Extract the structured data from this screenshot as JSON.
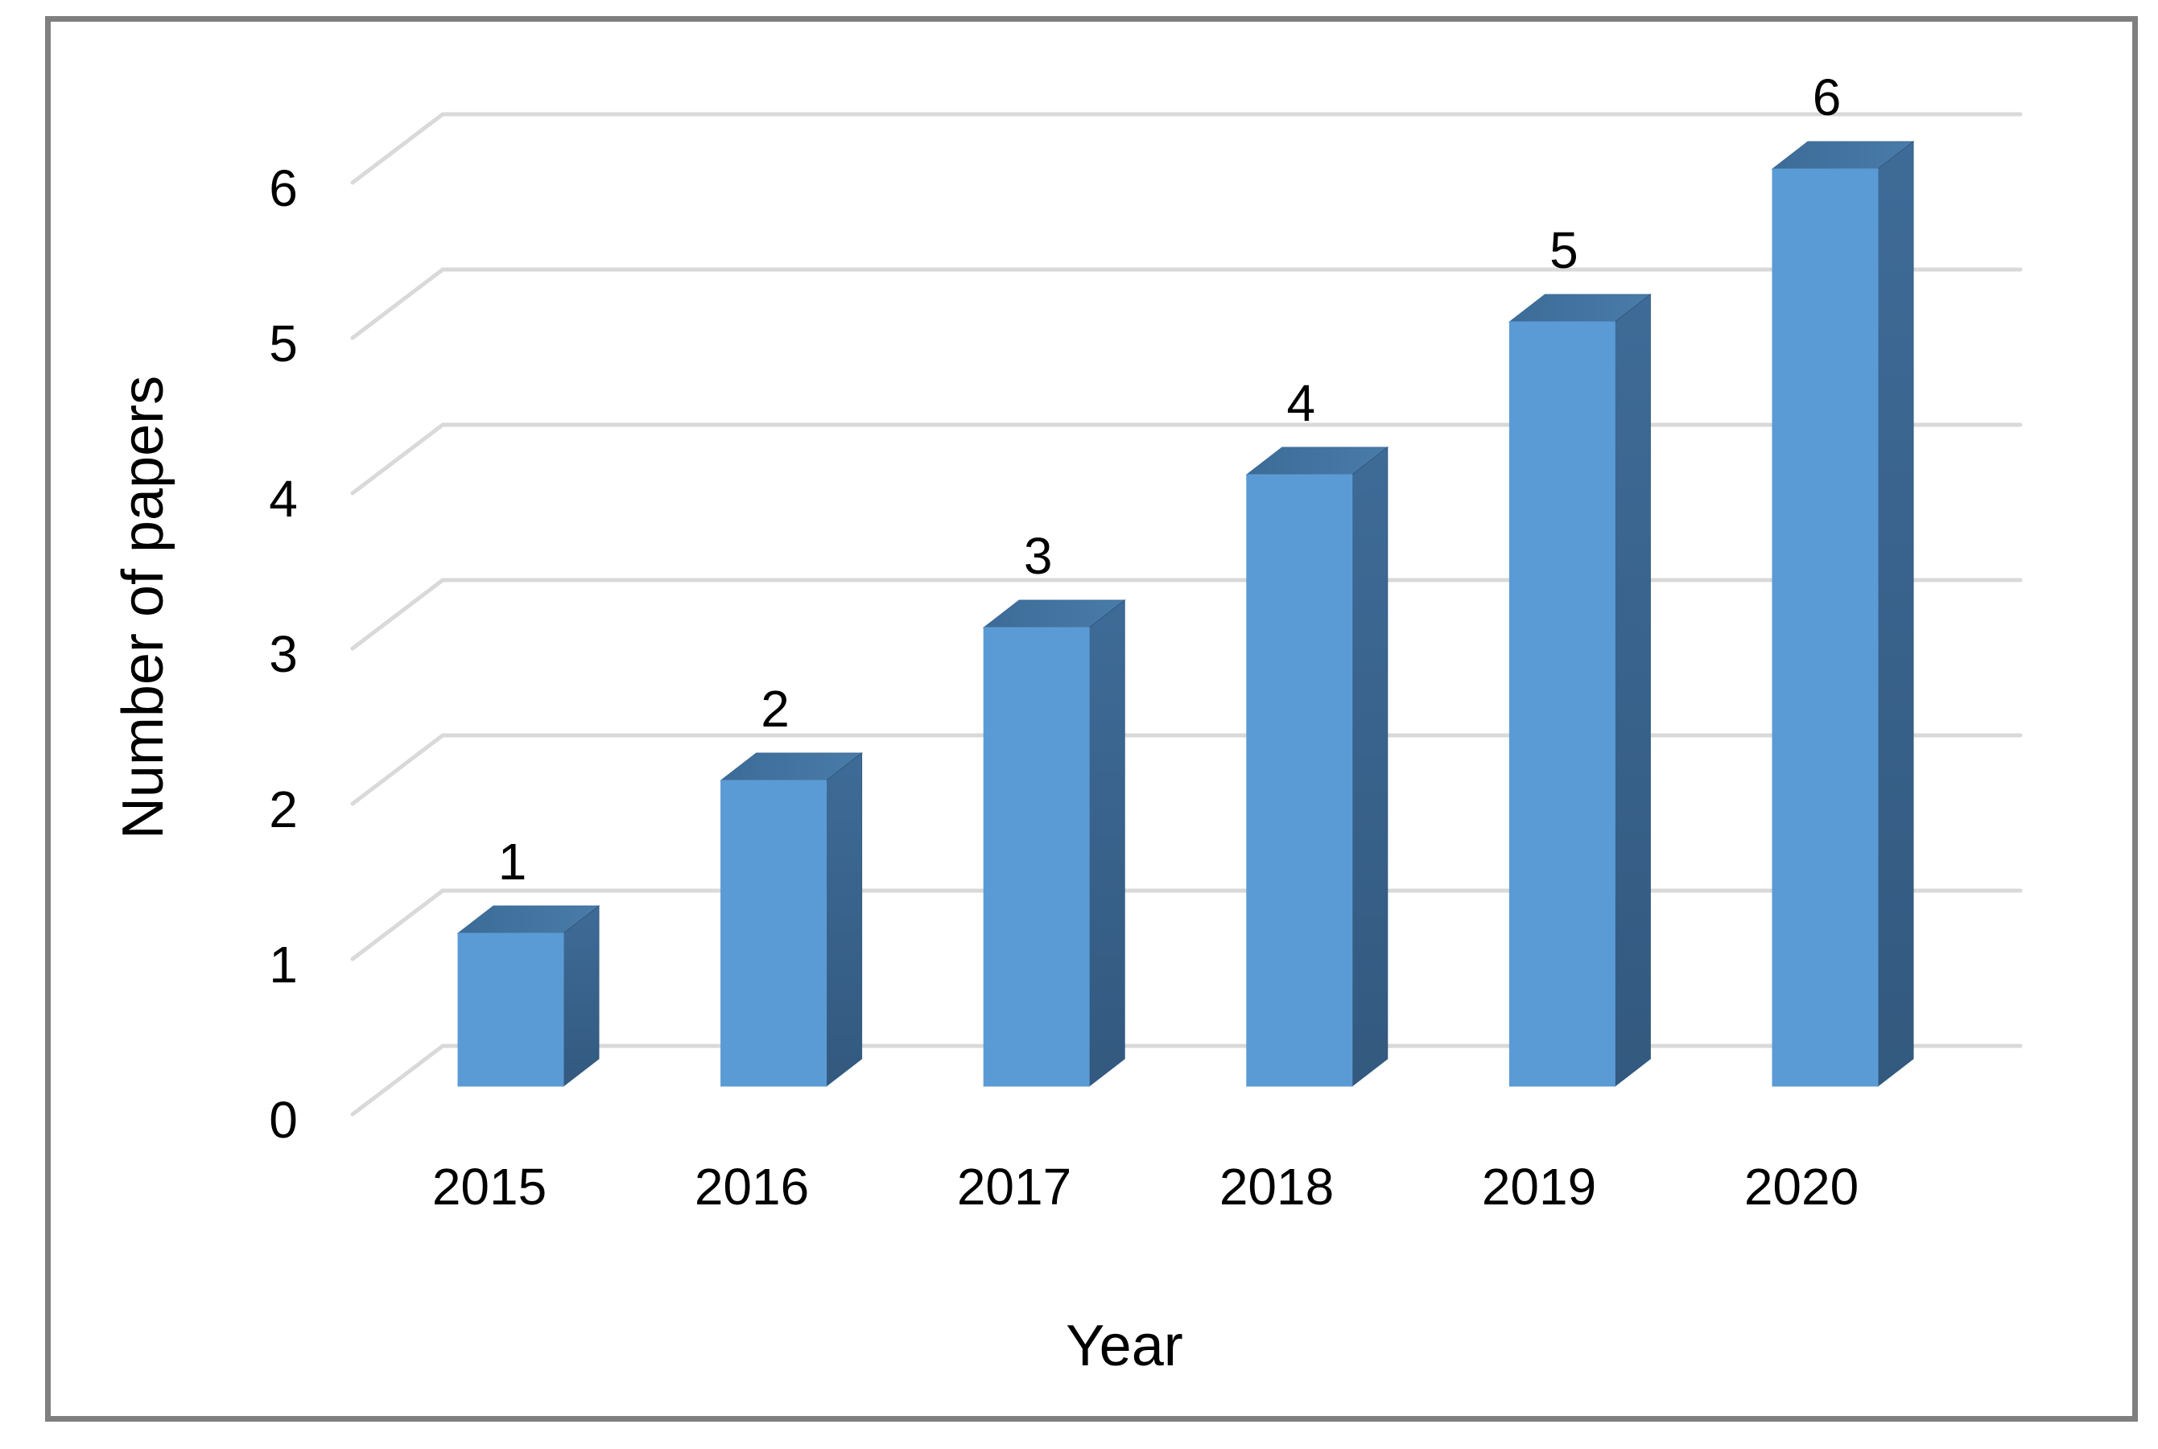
{
  "figure": {
    "background": "#ffffff",
    "border_color": "#7f7f7f"
  },
  "chart_data": {
    "type": "bar",
    "projection": "3d",
    "title": "",
    "xlabel": "Year",
    "ylabel": "Number of papers",
    "categories": [
      "2015",
      "2016",
      "2017",
      "2018",
      "2019",
      "2020"
    ],
    "values": [
      1,
      2,
      3,
      4,
      5,
      6
    ],
    "data_labels": [
      "1",
      "2",
      "3",
      "4",
      "5",
      "6"
    ],
    "yticks": [
      "0",
      "1",
      "2",
      "3",
      "4",
      "5",
      "6"
    ],
    "ylim": [
      0,
      6
    ],
    "grid": true,
    "legend": false,
    "colors": {
      "bar_front": "#5B9BD5",
      "bar_top_dark": "#3C6B97",
      "bar_top_light": "#4A7CA9",
      "bar_side_top": "#3E6B97",
      "bar_side_bottom": "#33597F",
      "gridline": "#D9D9D9",
      "text": "#000000"
    }
  }
}
